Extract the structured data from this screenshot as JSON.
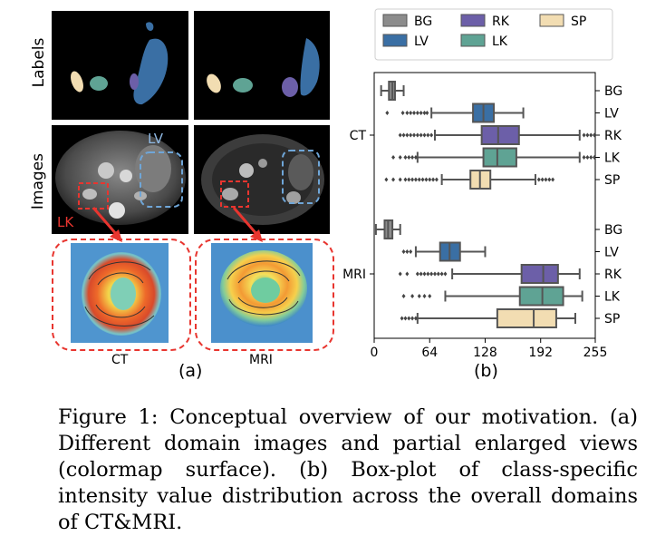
{
  "panel_a": {
    "row_labels": {
      "labels": "Labels",
      "images": "Images"
    },
    "annotations": {
      "lv": "LV",
      "lk": "LK"
    },
    "zoom_labels": {
      "ct": "CT",
      "mri": "MRI"
    },
    "sublabel": "(a)"
  },
  "panel_b": {
    "sublabel": "(b)"
  },
  "caption": {
    "text": "Figure 1: Conceptual overview of our motivation. (a) Different domain images and partial enlarged views (colormap surface). (b) Box-plot of class-specific intensity value distribution across the overall domains of CT&MRI."
  },
  "chart_data": {
    "type": "box",
    "orientation": "horizontal",
    "xlim": [
      0,
      255
    ],
    "xticks": [
      0,
      64,
      128,
      192,
      255
    ],
    "groups": [
      "CT",
      "MRI"
    ],
    "legend": {
      "placement": "top",
      "entries": [
        {
          "name": "BG",
          "color": "#8c8c8c"
        },
        {
          "name": "LV",
          "color": "#3a6fa4"
        },
        {
          "name": "RK",
          "color": "#6c5fa8"
        },
        {
          "name": "LK",
          "color": "#5fa394"
        },
        {
          "name": "SP",
          "color": "#f2ddb2"
        }
      ]
    },
    "boxes": [
      {
        "group": "CT",
        "name": "BG",
        "whislo": 8,
        "q1": 17,
        "med": 21,
        "q3": 24,
        "whishi": 34,
        "fliers_low": [],
        "fliers_high": []
      },
      {
        "group": "CT",
        "name": "LV",
        "whislo": 66,
        "q1": 114,
        "med": 126,
        "q3": 138,
        "whishi": 172,
        "fliers_low": [
          15,
          33,
          38,
          42,
          46,
          50,
          54,
          58,
          61
        ],
        "fliers_high": []
      },
      {
        "group": "CT",
        "name": "RK",
        "whislo": 70,
        "q1": 124,
        "med": 143,
        "q3": 167,
        "whishi": 237,
        "fliers_low": [
          30,
          34,
          38,
          42,
          46,
          50,
          54,
          58,
          62,
          66
        ],
        "fliers_high": [
          242,
          246,
          250,
          254
        ]
      },
      {
        "group": "CT",
        "name": "LK",
        "whislo": 50,
        "q1": 126,
        "med": 142,
        "q3": 164,
        "whishi": 237,
        "fliers_low": [
          22,
          30,
          36,
          40,
          44,
          48
        ],
        "fliers_high": [
          242,
          246,
          250,
          254
        ]
      },
      {
        "group": "CT",
        "name": "SP",
        "whislo": 78,
        "q1": 111,
        "med": 122,
        "q3": 134,
        "whishi": 186,
        "fliers_low": [
          14,
          22,
          30,
          36,
          40,
          44,
          48,
          52,
          56,
          60,
          64,
          68,
          72
        ],
        "fliers_high": [
          190,
          194,
          198,
          202,
          206
        ]
      },
      {
        "group": "MRI",
        "name": "BG",
        "whislo": 2,
        "q1": 12,
        "med": 16,
        "q3": 21,
        "whishi": 30,
        "fliers_low": [],
        "fliers_high": []
      },
      {
        "group": "MRI",
        "name": "LV",
        "whislo": 48,
        "q1": 76,
        "med": 87,
        "q3": 99,
        "whishi": 128,
        "fliers_low": [
          34,
          38,
          42
        ],
        "fliers_high": []
      },
      {
        "group": "MRI",
        "name": "RK",
        "whislo": 90,
        "q1": 170,
        "med": 195,
        "q3": 212,
        "whishi": 237,
        "fliers_low": [
          30,
          38,
          50,
          54,
          58,
          62,
          66,
          70,
          74,
          78,
          82
        ],
        "fliers_high": []
      },
      {
        "group": "MRI",
        "name": "LK",
        "whislo": 82,
        "q1": 168,
        "med": 194,
        "q3": 218,
        "whishi": 240,
        "fliers_low": [
          34,
          44,
          52,
          58,
          64
        ],
        "fliers_high": []
      },
      {
        "group": "MRI",
        "name": "SP",
        "whislo": 50,
        "q1": 142,
        "med": 184,
        "q3": 210,
        "whishi": 232,
        "fliers_low": [
          32,
          36,
          40,
          44,
          48
        ],
        "fliers_high": []
      }
    ]
  }
}
